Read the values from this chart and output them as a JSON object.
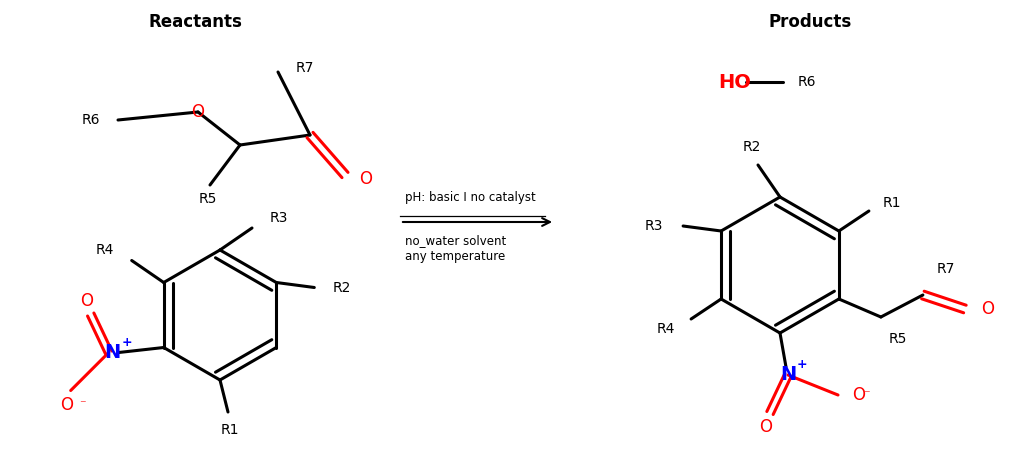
{
  "title_reactants": "Reactants",
  "title_products": "Products",
  "arrow_text_line1": "pH: basic I no catalyst",
  "arrow_text_line2": "no_water solvent",
  "arrow_text_line3": "any temperature",
  "bg_color": "#ffffff",
  "bond_color": "#000000",
  "red_color": "#ff0000",
  "blue_color": "#0000ff",
  "font_size_title": 12,
  "font_size_label": 10,
  "font_size_atom": 12,
  "font_size_arrow": 8.5,
  "lw": 2.2
}
